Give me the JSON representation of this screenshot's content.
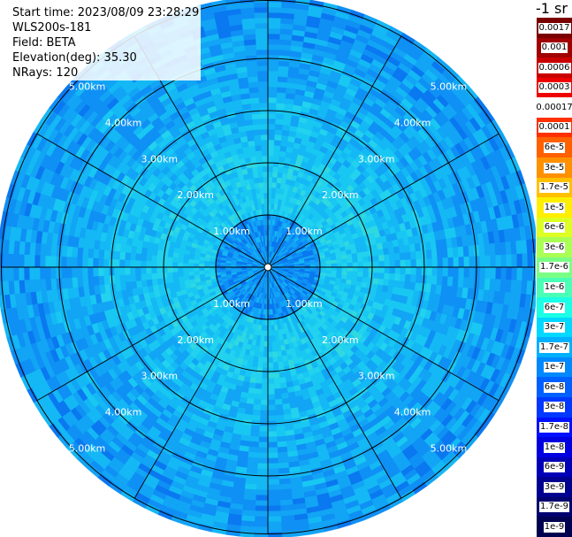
{
  "header": {
    "start_time": "Start time: 2023/08/09 23:28:29",
    "instrument": "WLS200s-181",
    "field": "Field: BETA",
    "elevation": "Elevation(deg): 35.30",
    "nrays": "NRays: 120"
  },
  "colorbar": {
    "unit": "-1 sr",
    "labels": [
      "0.0017",
      "0.001",
      "0.0006",
      "0.0003",
      "0.00017",
      "0.0001",
      "6e-5",
      "3e-5",
      "1.7e-5",
      "1e-5",
      "6e-6",
      "3e-6",
      "1.7e-6",
      "1e-6",
      "6e-7",
      "3e-7",
      "1.7e-7",
      "1e-7",
      "6e-8",
      "3e-8",
      "1.7e-8",
      "1e-8",
      "6e-9",
      "3e-9",
      "1.7e-9",
      "1e-9"
    ],
    "colors": [
      "#7a0000",
      "#a00000",
      "#c80000",
      "#ee0000",
      "#ffffff",
      "#ff3000",
      "#ff6000",
      "#ff9000",
      "#ffc000",
      "#ffee00",
      "#ddff22",
      "#aaff55",
      "#7aff85",
      "#4affb5",
      "#1affe5",
      "#00d8ff",
      "#00b0ff",
      "#0088ff",
      "#0060ff",
      "#0038ff",
      "#0010ff",
      "#0000e0",
      "#0000b8",
      "#000090",
      "#000070",
      "#000050"
    ]
  },
  "ring_labels": [
    "1.00km",
    "2.00km",
    "3.00km",
    "4.00km",
    "5.00km"
  ],
  "ring_label_color": "#ffffff"
}
